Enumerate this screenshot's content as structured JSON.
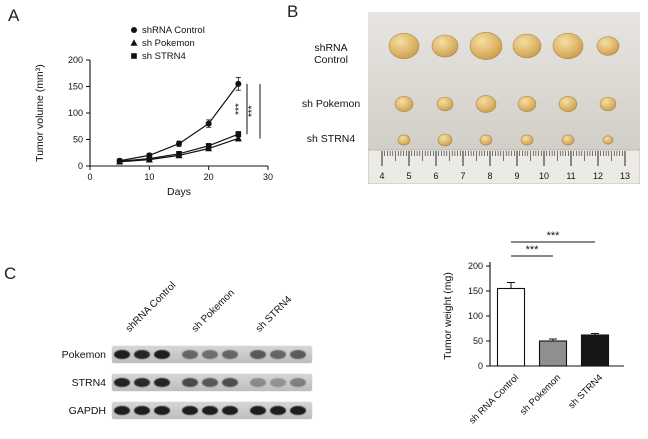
{
  "panels": {
    "a": "A",
    "b": "B",
    "c": "C"
  },
  "chart_data": [
    {
      "id": "tumor-volume",
      "type": "line",
      "title": "",
      "xlabel": "Days",
      "ylabel": "Tumor volume (mm³)",
      "xlim": [
        0,
        30
      ],
      "ylim": [
        0,
        200
      ],
      "xticks": [
        0,
        10,
        20,
        30
      ],
      "yticks": [
        0,
        50,
        100,
        150,
        200
      ],
      "x": [
        5,
        10,
        15,
        20,
        25
      ],
      "series": [
        {
          "name": "shRNA Control",
          "marker": "circle",
          "values": [
            10,
            20,
            42,
            80,
            155
          ],
          "errors": [
            3,
            4,
            5,
            7,
            12
          ]
        },
        {
          "name": "sh Pokemon",
          "marker": "triangle",
          "values": [
            8,
            12,
            20,
            33,
            52
          ],
          "errors": [
            2,
            2,
            3,
            4,
            5
          ]
        },
        {
          "name": "sh STRN4",
          "marker": "square",
          "values": [
            9,
            14,
            23,
            38,
            60
          ],
          "errors": [
            2,
            2,
            3,
            4,
            5
          ]
        }
      ],
      "significance": [
        "***",
        "***"
      ],
      "legend_position": "top",
      "grid": false
    },
    {
      "id": "tumor-weight",
      "type": "bar",
      "ylabel": "Tumor weight (mg)",
      "ylim": [
        0,
        200
      ],
      "yticks": [
        0,
        50,
        100,
        150,
        200
      ],
      "categories": [
        "sh RNA Control",
        "sh Pokemon",
        "sh STRN4"
      ],
      "values": [
        155,
        50,
        62
      ],
      "errors": [
        12,
        4,
        3
      ],
      "bar_colors": [
        "#ffffff",
        "#8f8f8f",
        "#161616"
      ],
      "significance": [
        {
          "from": 0,
          "to": 1,
          "label": "***"
        },
        {
          "from": 0,
          "to": 2,
          "label": "***"
        }
      ],
      "grid": false
    }
  ],
  "panel_b": {
    "rows": [
      {
        "label": "shRNA\nControl",
        "y": 34,
        "radii": [
          15,
          13,
          16,
          14,
          15,
          11
        ]
      },
      {
        "label": "sh Pokemon",
        "y": 92,
        "radii": [
          9,
          8,
          10,
          9,
          9,
          8
        ]
      },
      {
        "label": "sh STRN4",
        "y": 128,
        "radii": [
          6,
          7,
          6,
          6,
          6,
          5
        ]
      }
    ],
    "ruler_numbers": [
      "4",
      "5",
      "6",
      "7",
      "8",
      "9",
      "10",
      "11",
      "12",
      "13"
    ],
    "tumor_color": "#ddb467"
  },
  "panel_c": {
    "group_labels": [
      "shRNA Control",
      "sh Pokemon",
      "sh STRN4"
    ],
    "rows": [
      {
        "label": "Pokemon",
        "bands": [
          0.95,
          0.9,
          0.95,
          0.55,
          0.5,
          0.55,
          0.62,
          0.55,
          0.6
        ]
      },
      {
        "label": "STRN4",
        "bands": [
          0.92,
          0.88,
          0.9,
          0.7,
          0.62,
          0.68,
          0.35,
          0.3,
          0.4
        ]
      },
      {
        "label": "GAPDH",
        "bands": [
          0.95,
          0.95,
          0.95,
          0.95,
          0.95,
          0.95,
          0.95,
          0.95,
          0.95
        ]
      }
    ]
  }
}
